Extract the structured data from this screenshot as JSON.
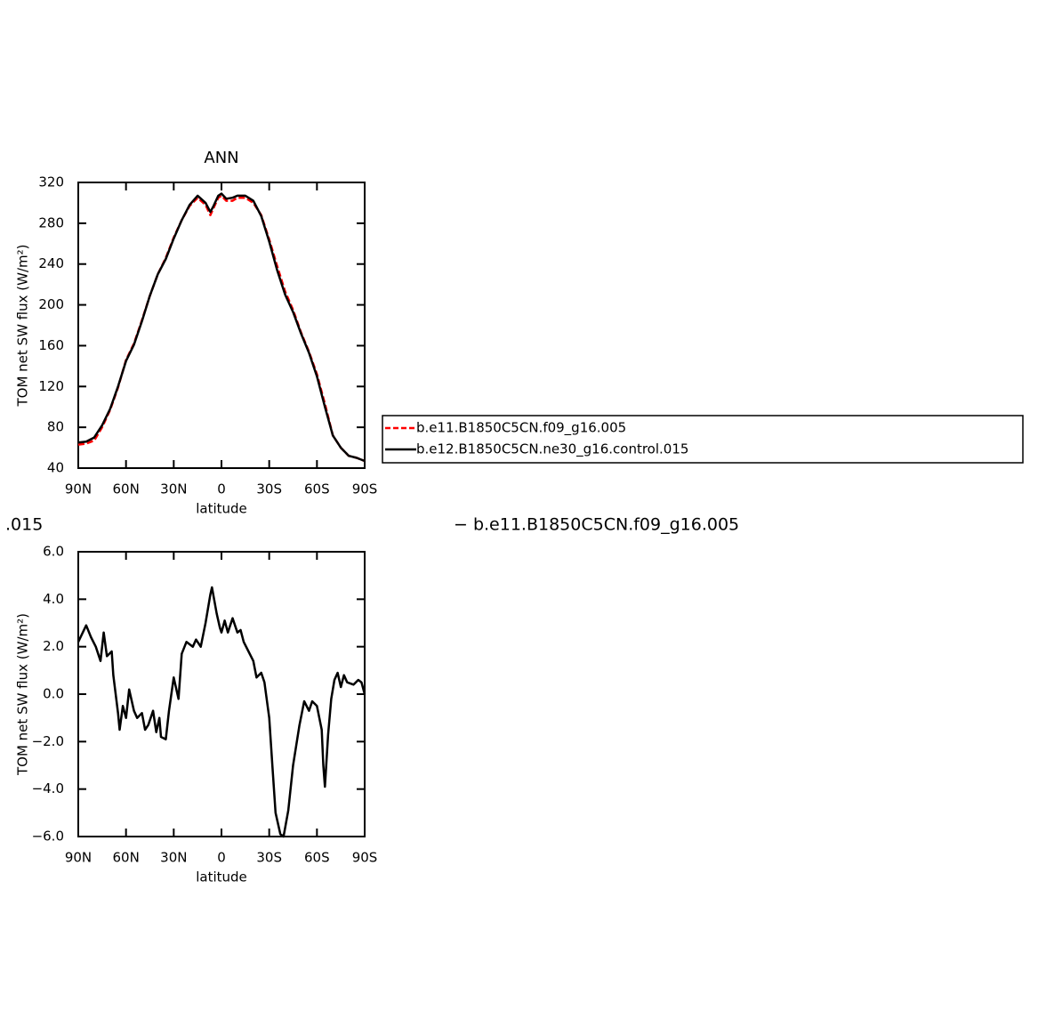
{
  "chart_data": [
    {
      "type": "line",
      "title": "ANN",
      "xlabel": "latitude",
      "ylabel": "TOM net SW flux (W/m²)",
      "x": [
        90,
        85,
        80,
        75,
        70,
        65,
        60,
        55,
        50,
        45,
        40,
        35,
        30,
        25,
        20,
        15,
        10,
        7,
        5,
        2,
        0,
        -3,
        -7,
        -10,
        -15,
        -20,
        -25,
        -30,
        -35,
        -40,
        -45,
        -50,
        -55,
        -60,
        -65,
        -70,
        -75,
        -80,
        -85,
        -90
      ],
      "series": [
        {
          "name": "b.e11.B1850C5CN.f09_g16.005",
          "color": "#ff0000",
          "dashed": true,
          "values": [
            63,
            64,
            67,
            80,
            97,
            119,
            146,
            162,
            185,
            209,
            230,
            246,
            266,
            283,
            297,
            305,
            298,
            288,
            295,
            305,
            307,
            302,
            302,
            305,
            305,
            300,
            288,
            264,
            238,
            213,
            195,
            173,
            154,
            132,
            103,
            72,
            60,
            52,
            50,
            47
          ]
        },
        {
          "name": "b.e12.B1850C5CN.ne30_g16.control.015",
          "color": "#000000",
          "dashed": false,
          "values": [
            65,
            66,
            70,
            82,
            98,
            120,
            145,
            161,
            184,
            209,
            230,
            245,
            265,
            283,
            298,
            307,
            300,
            291,
            297,
            307,
            309,
            304,
            305,
            307,
            307,
            302,
            287,
            262,
            234,
            210,
            193,
            172,
            153,
            130,
            100,
            72,
            60,
            52,
            50,
            47
          ]
        }
      ],
      "xlim": [
        90,
        -90
      ],
      "xticks": [
        {
          "value": 90,
          "label": "90N"
        },
        {
          "value": 60,
          "label": "60N"
        },
        {
          "value": 30,
          "label": "30N"
        },
        0,
        {
          "value": -30,
          "label": "30S"
        },
        {
          "value": -60,
          "label": "60S"
        },
        {
          "value": -90,
          "label": "90S"
        }
      ],
      "ylim": [
        40,
        320
      ],
      "yticks": [
        40,
        80,
        120,
        160,
        200,
        240,
        280,
        320
      ]
    },
    {
      "type": "line",
      "title_parts": [
        ".015",
        "− b.e11.B1850C5CN.f09_g16.005"
      ],
      "xlabel": "latitude",
      "ylabel": "TOM net SW flux (W/m²)",
      "x": [
        90,
        85,
        82,
        79,
        76,
        74,
        72,
        69,
        68,
        65,
        64,
        62,
        60,
        58,
        55,
        53,
        50,
        48,
        46,
        43,
        41,
        39,
        38,
        35,
        33,
        30,
        27,
        25,
        22,
        18,
        16,
        13,
        10,
        7,
        6,
        3,
        1,
        0,
        -2,
        -4,
        -7,
        -10,
        -12,
        -14,
        -17,
        -20,
        -22,
        -25,
        -27,
        -30,
        -32,
        -34,
        -37,
        -39,
        -42,
        -45,
        -49,
        -52,
        -55,
        -57,
        -60,
        -63,
        -64,
        -65,
        -67,
        -69,
        -71,
        -73,
        -75,
        -77,
        -79,
        -83,
        -86,
        -88,
        -90
      ],
      "values": [
        2.2,
        2.9,
        2.4,
        2.0,
        1.4,
        2.6,
        1.6,
        1.8,
        0.8,
        -0.8,
        -1.5,
        -0.5,
        -1.0,
        0.2,
        -0.7,
        -1.0,
        -0.8,
        -1.5,
        -1.3,
        -0.7,
        -1.6,
        -1.0,
        -1.8,
        -1.9,
        -0.7,
        0.7,
        -0.2,
        1.7,
        2.2,
        2.0,
        2.3,
        2.0,
        3.0,
        4.2,
        4.5,
        3.4,
        2.8,
        2.6,
        3.1,
        2.6,
        3.2,
        2.6,
        2.7,
        2.2,
        1.8,
        1.4,
        0.7,
        0.9,
        0.5,
        -1.0,
        -3.0,
        -5.0,
        -5.9,
        -6.0,
        -4.9,
        -3.0,
        -1.3,
        -0.3,
        -0.7,
        -0.3,
        -0.5,
        -1.5,
        -3.0,
        -3.9,
        -1.7,
        -0.2,
        0.6,
        0.9,
        0.3,
        0.8,
        0.5,
        0.4,
        0.6,
        0.5,
        0.0
      ],
      "color": "#000000",
      "xlim": [
        90,
        -90
      ],
      "xticks": [
        {
          "value": 90,
          "label": "90N"
        },
        {
          "value": 60,
          "label": "60N"
        },
        {
          "value": 30,
          "label": "30N"
        },
        0,
        {
          "value": -30,
          "label": "30S"
        },
        {
          "value": -60,
          "label": "60S"
        },
        {
          "value": -90,
          "label": "90S"
        }
      ],
      "ylim": [
        -6,
        6
      ],
      "yticks": [
        {
          "value": -6,
          "label": "−6.0"
        },
        {
          "value": -4,
          "label": "−4.0"
        },
        {
          "value": -2,
          "label": "−2.0"
        },
        {
          "value": 0,
          "label": "0.0"
        },
        {
          "value": 2,
          "label": "2.0"
        },
        {
          "value": 4,
          "label": "4.0"
        },
        {
          "value": 6,
          "label": "6.0"
        }
      ]
    }
  ]
}
